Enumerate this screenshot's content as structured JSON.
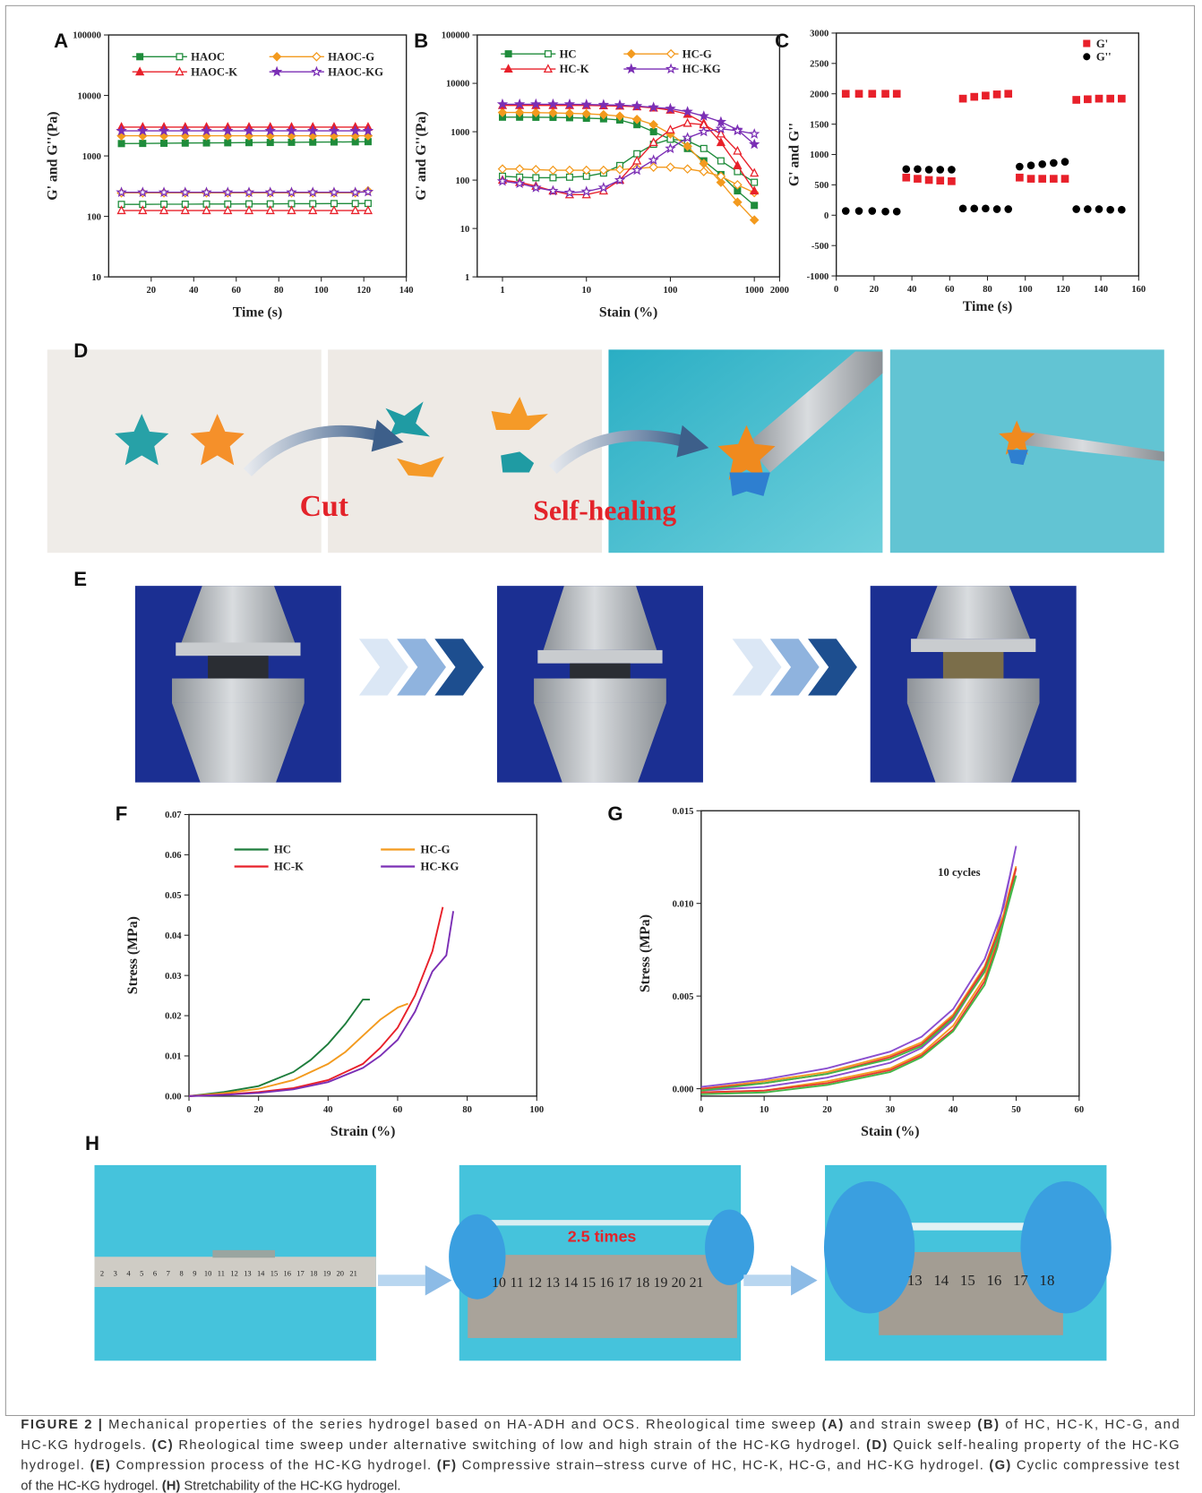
{
  "panel_labels": [
    "A",
    "B",
    "C",
    "D",
    "E",
    "F",
    "G",
    "H"
  ],
  "chart_data": [
    {
      "type": "line",
      "xlabel": "Time (s)",
      "ylabel": "G' and G''(Pa)",
      "yscale": "log",
      "xlim": [
        0,
        140
      ],
      "xticks": [
        20,
        40,
        60,
        80,
        100,
        120,
        140
      ],
      "ylim": [
        10,
        100000
      ],
      "yticks": [
        10,
        100,
        1000,
        10000,
        100000
      ],
      "legend": "upper left",
      "x": [
        6,
        16,
        26,
        36,
        46,
        56,
        66,
        76,
        86,
        96,
        106,
        116,
        122
      ],
      "series": [
        {
          "name": "HAOC",
          "color": "#1f8c3b",
          "marker": "square",
          "values": [
            1600,
            1610,
            1620,
            1630,
            1640,
            1650,
            1660,
            1670,
            1680,
            1690,
            1700,
            1710,
            1720
          ],
          "loss_values": [
            158,
            158,
            159,
            159,
            160,
            160,
            161,
            161,
            162,
            162,
            163,
            163,
            164
          ]
        },
        {
          "name": "HAOC-G",
          "color": "#f39a1e",
          "marker": "diamond",
          "values": [
            2150,
            2150,
            2150,
            2150,
            2150,
            2150,
            2150,
            2150,
            2150,
            2150,
            2150,
            2150,
            2150
          ],
          "loss_values": [
            245,
            245,
            245,
            245,
            245,
            245,
            245,
            245,
            245,
            245,
            245,
            245,
            265
          ]
        },
        {
          "name": "HAOC-K",
          "color": "#e8202a",
          "marker": "triangle",
          "values": [
            3000,
            3000,
            3000,
            3000,
            3000,
            3000,
            3000,
            3000,
            3000,
            3000,
            3000,
            3000,
            3000
          ],
          "loss_values": [
            125,
            125,
            125,
            125,
            125,
            125,
            125,
            125,
            125,
            125,
            125,
            125,
            125
          ]
        },
        {
          "name": "HAOC-KG",
          "color": "#7b2fb5",
          "marker": "star",
          "values": [
            2600,
            2600,
            2600,
            2600,
            2600,
            2600,
            2600,
            2600,
            2600,
            2600,
            2600,
            2600,
            2600
          ],
          "loss_values": [
            250,
            250,
            250,
            250,
            250,
            250,
            250,
            250,
            250,
            250,
            250,
            250,
            255
          ]
        }
      ]
    },
    {
      "type": "line",
      "xlabel": "Stain (%)",
      "ylabel": "G' and G''(Pa)",
      "xscale": "log",
      "yscale": "log",
      "xlim": [
        0.5,
        2000
      ],
      "xticks": [
        1,
        10,
        100,
        1000,
        2000
      ],
      "ylim": [
        1,
        100000
      ],
      "yticks": [
        1,
        10,
        100,
        1000,
        10000,
        100000
      ],
      "legend": "upper left",
      "x": [
        1,
        1.6,
        2.5,
        4,
        6.3,
        10,
        16,
        25,
        40,
        63,
        100,
        160,
        250,
        400,
        630,
        1000
      ],
      "series": [
        {
          "name": "HC",
          "color": "#1f8c3b",
          "marker": "square",
          "values": [
            2000,
            2000,
            1990,
            1980,
            1950,
            1900,
            1850,
            1750,
            1400,
            1000,
            700,
            450,
            250,
            130,
            60,
            30
          ],
          "loss_values": [
            120,
            115,
            112,
            112,
            115,
            120,
            140,
            200,
            350,
            550,
            700,
            650,
            450,
            250,
            150,
            90
          ]
        },
        {
          "name": "HC-G",
          "color": "#f39a1e",
          "marker": "diamond",
          "values": [
            2500,
            2500,
            2480,
            2450,
            2400,
            2350,
            2250,
            2100,
            1800,
            1400,
            900,
            500,
            220,
            90,
            35,
            15
          ],
          "loss_values": [
            170,
            170,
            165,
            160,
            160,
            160,
            160,
            165,
            175,
            185,
            185,
            170,
            150,
            120,
            80,
            55
          ]
        },
        {
          "name": "HC-K",
          "color": "#e8202a",
          "marker": "triangle",
          "values": [
            3500,
            3500,
            3500,
            3500,
            3500,
            3500,
            3450,
            3400,
            3300,
            3100,
            2800,
            2300,
            1500,
            600,
            200,
            60
          ],
          "loss_values": [
            100,
            90,
            75,
            60,
            50,
            50,
            60,
            100,
            250,
            600,
            1100,
            1500,
            1400,
            900,
            400,
            140
          ]
        },
        {
          "name": "HC-KG",
          "color": "#7b2fb5",
          "marker": "star",
          "values": [
            3700,
            3700,
            3700,
            3700,
            3700,
            3650,
            3600,
            3550,
            3400,
            3200,
            3000,
            2600,
            2100,
            1600,
            1100,
            550
          ],
          "loss_values": [
            95,
            85,
            70,
            60,
            55,
            58,
            70,
            100,
            160,
            260,
            450,
            750,
            1000,
            1150,
            1050,
            900
          ]
        }
      ]
    },
    {
      "type": "scatter",
      "xlabel": "Time (s)",
      "ylabel": "G' and G''",
      "xlim": [
        0,
        160
      ],
      "xticks": [
        0,
        20,
        40,
        60,
        80,
        100,
        120,
        140,
        160
      ],
      "ylim": [
        -1000,
        3000
      ],
      "yticks": [
        -1000,
        -500,
        0,
        500,
        1000,
        1500,
        2000,
        2500,
        3000
      ],
      "legend": "upper right",
      "x": [
        5,
        12,
        19,
        26,
        32,
        37,
        43,
        49,
        55,
        61,
        67,
        73,
        79,
        85,
        91,
        97,
        103,
        109,
        115,
        121,
        127,
        133,
        139,
        145,
        151
      ],
      "series": [
        {
          "name": "G'",
          "color": "#e8202a",
          "marker": "square",
          "values": [
            2000,
            2000,
            2000,
            2000,
            2000,
            620,
            600,
            580,
            570,
            560,
            1920,
            1950,
            1970,
            1990,
            2000,
            620,
            600,
            600,
            600,
            600,
            1900,
            1910,
            1920,
            1920,
            1920
          ]
        },
        {
          "name": "G''",
          "color": "#000000",
          "marker": "circle",
          "values": [
            70,
            70,
            70,
            60,
            60,
            760,
            760,
            750,
            750,
            750,
            110,
            110,
            110,
            100,
            100,
            800,
            820,
            840,
            860,
            880,
            100,
            100,
            100,
            90,
            90
          ]
        }
      ]
    },
    {
      "type": "line",
      "xlabel": "Strain (%)",
      "ylabel": "Stress (MPa)",
      "xlim": [
        0,
        100
      ],
      "xticks": [
        0,
        20,
        40,
        60,
        80,
        100
      ],
      "ylim": [
        0,
        0.07
      ],
      "yticks": [
        {
          "value": 0,
          "label": "0.00"
        },
        0.01,
        0.02,
        0.03,
        0.04,
        0.05,
        0.06,
        0.07
      ],
      "legend": "upper left",
      "series": [
        {
          "name": "HC",
          "color": "#1e7d3c",
          "x": [
            0,
            10,
            20,
            30,
            35,
            40,
            45,
            50,
            52
          ],
          "values": [
            0,
            0.001,
            0.0025,
            0.006,
            0.009,
            0.013,
            0.018,
            0.024,
            0.024
          ]
        },
        {
          "name": "HC-G",
          "color": "#f39a1e",
          "x": [
            0,
            10,
            20,
            30,
            40,
            45,
            50,
            55,
            60,
            63
          ],
          "values": [
            0,
            0.0007,
            0.0018,
            0.004,
            0.008,
            0.011,
            0.015,
            0.019,
            0.022,
            0.023
          ]
        },
        {
          "name": "HC-K",
          "color": "#e8202a",
          "x": [
            0,
            10,
            20,
            30,
            40,
            50,
            55,
            60,
            65,
            70,
            73
          ],
          "values": [
            0,
            0.0004,
            0.001,
            0.002,
            0.004,
            0.008,
            0.012,
            0.017,
            0.025,
            0.036,
            0.047
          ]
        },
        {
          "name": "HC-KG",
          "color": "#7b2fb5",
          "x": [
            0,
            10,
            20,
            30,
            40,
            50,
            55,
            60,
            65,
            70,
            74,
            76
          ],
          "values": [
            0,
            0.0003,
            0.0008,
            0.0017,
            0.0035,
            0.007,
            0.01,
            0.014,
            0.021,
            0.031,
            0.035,
            0.046
          ]
        }
      ]
    },
    {
      "type": "line",
      "xlabel": "Stain (%)",
      "ylabel": "Stress (MPa)",
      "annotation": "10 cycles",
      "xlim": [
        0,
        60
      ],
      "xticks": [
        0,
        10,
        20,
        30,
        40,
        50,
        60
      ],
      "ylim": [
        -0.0004,
        0.015
      ],
      "yticks": [
        {
          "value": 0,
          "label": "0.000"
        },
        0.005,
        {
          "value": 0.01,
          "label": "0.010"
        },
        0.015
      ],
      "x": [
        0,
        10,
        20,
        30,
        35,
        40,
        45,
        48,
        50,
        49,
        47,
        45,
        40,
        35,
        30,
        20,
        10,
        0
      ],
      "series": [
        {
          "color": "#8a4fd0",
          "values": [
            0.0001,
            0.0005,
            0.0011,
            0.002,
            0.0028,
            0.0043,
            0.007,
            0.0098,
            0.0131,
            0.0115,
            0.0085,
            0.0064,
            0.0037,
            0.0022,
            0.0014,
            0.0006,
            0.0001,
            -0.0001
          ]
        },
        {
          "color": "#f59a23",
          "values": [
            0,
            0.0004,
            0.0009,
            0.0018,
            0.0025,
            0.004,
            0.0066,
            0.0094,
            0.012,
            0.0108,
            0.008,
            0.006,
            0.0034,
            0.0019,
            0.0011,
            0.0004,
            -0.0001,
            -0.0002
          ]
        },
        {
          "color": "#e53a2f",
          "values": [
            0,
            0.0003,
            0.0008,
            0.0017,
            0.0024,
            0.0039,
            0.0065,
            0.0092,
            0.0119,
            0.0106,
            0.0078,
            0.0058,
            0.0032,
            0.0018,
            0.001,
            0.0003,
            -0.0001,
            -0.0002
          ]
        },
        {
          "color": "#45b649",
          "values": [
            -0.0001,
            0.0003,
            0.0008,
            0.0016,
            0.0023,
            0.0038,
            0.0063,
            0.009,
            0.0115,
            0.0104,
            0.0076,
            0.0056,
            0.0031,
            0.0017,
            0.0009,
            0.0002,
            -0.0002,
            -0.0003
          ]
        }
      ]
    }
  ],
  "photo_texts": {
    "cut": "Cut",
    "self_healing": "Self-healing",
    "stretch": "2.5 times",
    "ruler_1": [
      "2",
      "3",
      "4",
      "5",
      "6",
      "7",
      "8",
      "9",
      "10",
      "11",
      "12",
      "13",
      "14",
      "15",
      "16",
      "17",
      "18",
      "19",
      "20",
      "21"
    ],
    "ruler_2": [
      "10",
      "11",
      "12",
      "13",
      "14",
      "15",
      "16",
      "17",
      "18",
      "19",
      "20",
      "21"
    ],
    "ruler_3": [
      "13",
      "14",
      "15",
      "16",
      "17",
      "18"
    ]
  },
  "caption": [
    [
      {
        "text": "FIGURE 2 |",
        "bold": true
      },
      {
        "text": " Mechanical properties of the series hydrogel based on HA-ADH and OCS. Rheological time sweep "
      },
      {
        "text": "(A)",
        "bold": true
      },
      {
        "text": " and strain sweep "
      },
      {
        "text": "(B)",
        "bold": true
      },
      {
        "text": " of HC, HC-K, HC-G, and"
      }
    ],
    [
      {
        "text": "HC-KG hydrogels. "
      },
      {
        "text": "(C)",
        "bold": true
      },
      {
        "text": " Rheological time sweep under alternative switching of low and high strain of the HC-KG hydrogel. "
      },
      {
        "text": "(D)",
        "bold": true
      },
      {
        "text": " Quick self-healing property of the HC-KG"
      }
    ],
    [
      {
        "text": "hydrogel. "
      },
      {
        "text": "(E)",
        "bold": true
      },
      {
        "text": " Compression process of the HC-KG hydrogel. "
      },
      {
        "text": "(F)",
        "bold": true
      },
      {
        "text": " Compressive strain–stress curve of HC, HC-K, HC-G, and HC-KG hydrogel. "
      },
      {
        "text": "(G)",
        "bold": true
      },
      {
        "text": " Cyclic compressive test"
      }
    ],
    [
      {
        "text": "of the HC-KG hydrogel. "
      },
      {
        "text": "(H)",
        "bold": true
      },
      {
        "text": " Stretchability of the HC-KG hydrogel."
      }
    ]
  ]
}
